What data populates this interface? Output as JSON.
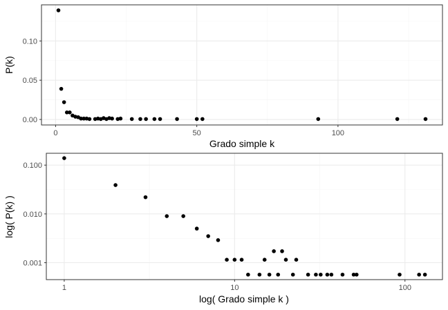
{
  "chart_data": [
    {
      "type": "scatter",
      "title": "",
      "xlabel": "Grado simple k",
      "ylabel": "P(k)",
      "x_scale": "linear",
      "y_scale": "linear",
      "xlim": [
        -5,
        137
      ],
      "ylim": [
        -0.007,
        0.146
      ],
      "x_ticks": [
        0,
        50,
        100
      ],
      "x_tick_labels": [
        "0",
        "50",
        "100"
      ],
      "y_ticks": [
        0.0,
        0.05,
        0.1
      ],
      "y_tick_labels": [
        "0.00",
        "0.05",
        "0.10"
      ],
      "grid": true,
      "points": [
        {
          "x": 1,
          "y": 0.139
        },
        {
          "x": 2,
          "y": 0.039
        },
        {
          "x": 3,
          "y": 0.022
        },
        {
          "x": 4,
          "y": 0.009
        },
        {
          "x": 5,
          "y": 0.009
        },
        {
          "x": 6,
          "y": 0.005
        },
        {
          "x": 7,
          "y": 0.0035
        },
        {
          "x": 8,
          "y": 0.0029
        },
        {
          "x": 9,
          "y": 0.00115
        },
        {
          "x": 10,
          "y": 0.00115
        },
        {
          "x": 11,
          "y": 0.00115
        },
        {
          "x": 12,
          "y": 0.00057
        },
        {
          "x": 14,
          "y": 0.00057
        },
        {
          "x": 15,
          "y": 0.00115
        },
        {
          "x": 16,
          "y": 0.00057
        },
        {
          "x": 17,
          "y": 0.00172
        },
        {
          "x": 18,
          "y": 0.00057
        },
        {
          "x": 19,
          "y": 0.00172
        },
        {
          "x": 20,
          "y": 0.00115
        },
        {
          "x": 22,
          "y": 0.00057
        },
        {
          "x": 23,
          "y": 0.00115
        },
        {
          "x": 27,
          "y": 0.00057
        },
        {
          "x": 30,
          "y": 0.00057
        },
        {
          "x": 32,
          "y": 0.00057
        },
        {
          "x": 35,
          "y": 0.00057
        },
        {
          "x": 37,
          "y": 0.00057
        },
        {
          "x": 43,
          "y": 0.00057
        },
        {
          "x": 50,
          "y": 0.00057
        },
        {
          "x": 52,
          "y": 0.00057
        },
        {
          "x": 93,
          "y": 0.00057
        },
        {
          "x": 121,
          "y": 0.00057
        },
        {
          "x": 131,
          "y": 0.00057
        }
      ]
    },
    {
      "type": "scatter",
      "title": "",
      "xlabel": "log( Grado simple k )",
      "ylabel": "log( P(k) )",
      "x_scale": "log10",
      "y_scale": "log10",
      "xlim": [
        0.785,
        166
      ],
      "ylim": [
        0.00045,
        0.175
      ],
      "x_ticks": [
        1,
        10,
        100
      ],
      "x_tick_labels": [
        "1",
        "10",
        "100"
      ],
      "y_ticks": [
        0.001,
        0.01,
        0.1
      ],
      "y_tick_labels": [
        "0.001",
        "0.010",
        "0.100"
      ],
      "grid": true,
      "points": [
        {
          "x": 1,
          "y": 0.139
        },
        {
          "x": 2,
          "y": 0.039
        },
        {
          "x": 3,
          "y": 0.022
        },
        {
          "x": 4,
          "y": 0.009
        },
        {
          "x": 5,
          "y": 0.009
        },
        {
          "x": 6,
          "y": 0.005
        },
        {
          "x": 7,
          "y": 0.0035
        },
        {
          "x": 8,
          "y": 0.0029
        },
        {
          "x": 9,
          "y": 0.00115
        },
        {
          "x": 10,
          "y": 0.00115
        },
        {
          "x": 11,
          "y": 0.00115
        },
        {
          "x": 12,
          "y": 0.00057
        },
        {
          "x": 14,
          "y": 0.00057
        },
        {
          "x": 15,
          "y": 0.00115
        },
        {
          "x": 16,
          "y": 0.00057
        },
        {
          "x": 17,
          "y": 0.00172
        },
        {
          "x": 18,
          "y": 0.00057
        },
        {
          "x": 19,
          "y": 0.00172
        },
        {
          "x": 20,
          "y": 0.00115
        },
        {
          "x": 22,
          "y": 0.00057
        },
        {
          "x": 23,
          "y": 0.00115
        },
        {
          "x": 27,
          "y": 0.00057
        },
        {
          "x": 30,
          "y": 0.00057
        },
        {
          "x": 32,
          "y": 0.00057
        },
        {
          "x": 35,
          "y": 0.00057
        },
        {
          "x": 37,
          "y": 0.00057
        },
        {
          "x": 43,
          "y": 0.00057
        },
        {
          "x": 50,
          "y": 0.00057
        },
        {
          "x": 52,
          "y": 0.00057
        },
        {
          "x": 93,
          "y": 0.00057
        },
        {
          "x": 121,
          "y": 0.00057
        },
        {
          "x": 131,
          "y": 0.00057
        }
      ]
    }
  ],
  "colors": {
    "point": "#000000",
    "panel_border": "#333333",
    "grid_major": "#ebebeb",
    "grid_minor": "#f5f5f5",
    "tick_label": "#4d4d4d",
    "axis_title": "#000000"
  }
}
